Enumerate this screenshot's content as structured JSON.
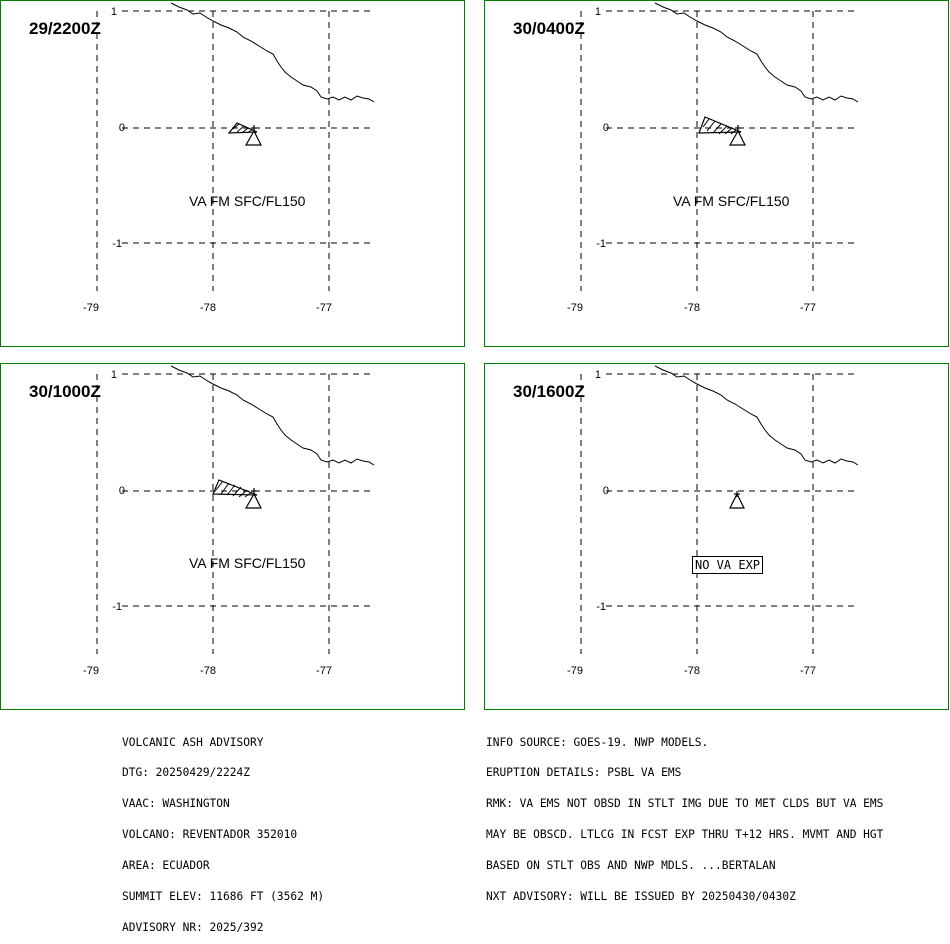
{
  "panels": [
    {
      "time": "29/2200Z",
      "label": "VA FM SFC/FL150",
      "label_style": "plain",
      "plume": "small"
    },
    {
      "time": "30/0400Z",
      "label": "VA FM SFC/FL150",
      "label_style": "plain",
      "plume": "medium"
    },
    {
      "time": "30/1000Z",
      "label": "VA FM SFC/FL150",
      "label_style": "plain",
      "plume": "large"
    },
    {
      "time": "30/1600Z",
      "label": "NO VA EXP",
      "label_style": "boxed",
      "plume": "none"
    }
  ],
  "axes": {
    "lat_labels": [
      "1",
      "0",
      "-1"
    ],
    "lon_labels": [
      "-79",
      "-78",
      "-77"
    ]
  },
  "advisory": {
    "lines": [
      "VOLCANIC ASH ADVISORY",
      "DTG: 20250429/2224Z",
      "VAAC: WASHINGTON",
      "VOLCANO: REVENTADOR 352010",
      "AREA: ECUADOR",
      "SUMMIT ELEV: 11686 FT (3562 M)",
      "ADVISORY NR: 2025/392"
    ]
  },
  "info": {
    "lines": [
      "INFO SOURCE: GOES-19. NWP MODELS.",
      "ERUPTION DETAILS: PSBL VA EMS",
      "RMK: VA EMS NOT OBSD IN STLT IMG DUE TO MET CLDS BUT VA EMS",
      "MAY BE OBSCD. LTLCG IN FCST EXP THRU T+12 HRS. MVMT AND HGT",
      "BASED ON STLT OBS AND NWP MDLS. ...BERTALAN",
      "NXT ADVISORY: WILL BE ISSUED BY 20250430/0430Z"
    ]
  },
  "colors": {
    "frame": "#008000",
    "lines": "#000000"
  }
}
